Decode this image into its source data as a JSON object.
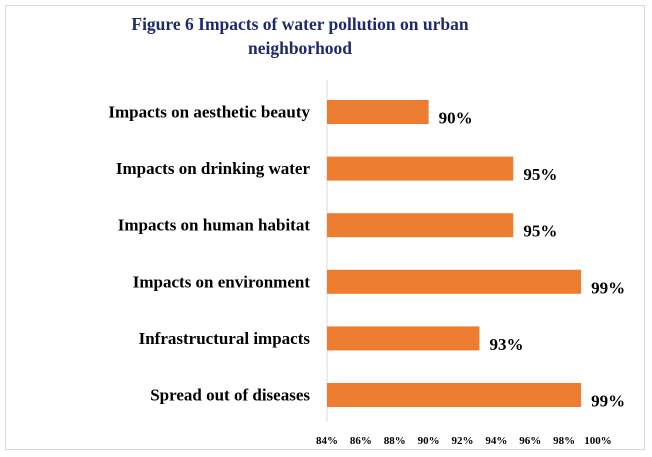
{
  "chart_data": {
    "type": "bar",
    "orientation": "horizontal",
    "title_lines": [
      "Figure  6 Impacts of water pollution on urban",
      "neighborhood"
    ],
    "categories": [
      "Impacts on aesthetic beauty",
      "Impacts on drinking  water",
      "Impacts on human habitat",
      "Impacts on environment",
      "Infrastructural impacts",
      "Spread out of diseases"
    ],
    "values": [
      90,
      95,
      95,
      99,
      93,
      99
    ],
    "data_labels": [
      "90%",
      "95%",
      "95%",
      "99%",
      "93%",
      "99%"
    ],
    "xlim": [
      84,
      100
    ],
    "ticks": [
      "84%",
      "86%",
      "88%",
      "90%",
      "92%",
      "94%",
      "96%",
      "98%",
      "100%"
    ],
    "tick_values": [
      84,
      86,
      88,
      90,
      92,
      94,
      96,
      98,
      100
    ],
    "bar_color": "#ed7d31",
    "grid": false,
    "xlabel": "",
    "ylabel": ""
  }
}
